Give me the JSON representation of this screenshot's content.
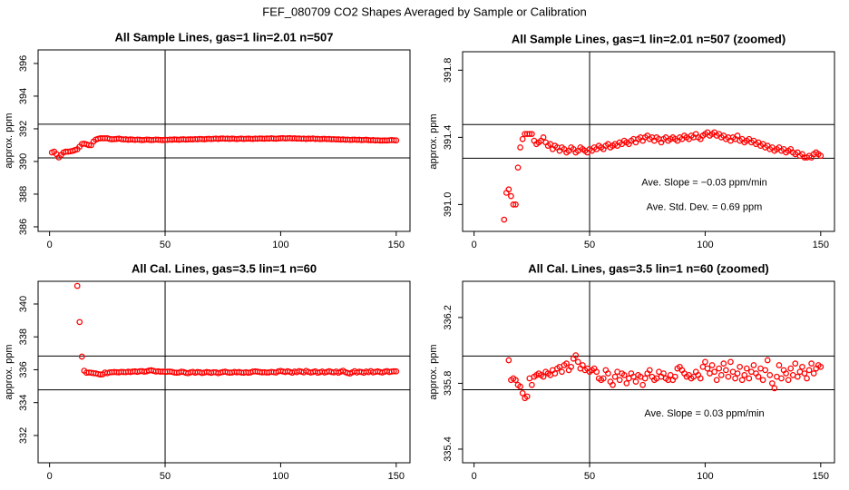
{
  "title": "FEF_080709  CO2 Shapes Averaged by Sample or Calibration",
  "chart_data": [
    {
      "type": "scatter",
      "title": "All Sample Lines, gas=1 lin=2.01 n=507",
      "ylabel": "approx. ppm",
      "color": "#ff0000",
      "xlim": [
        -4.96,
        155.96
      ],
      "ylim": [
        385.72,
        396.83
      ],
      "xticks": [
        0,
        50,
        100,
        150
      ],
      "yticks": [
        386,
        388,
        390,
        392,
        394,
        396
      ],
      "hlines": [
        392.28,
        390.22
      ],
      "vlines": [
        50
      ],
      "x": [
        1,
        2,
        3,
        4,
        5,
        6,
        7,
        8,
        9,
        10,
        11,
        12,
        13,
        14,
        15,
        16,
        17,
        18,
        19,
        20,
        21,
        22,
        23,
        24,
        25,
        26,
        27,
        28,
        29,
        30,
        31,
        32,
        33,
        34,
        35,
        36,
        37,
        38,
        39,
        40,
        41,
        42,
        43,
        44,
        45,
        46,
        47,
        48,
        49,
        50,
        51,
        52,
        53,
        54,
        55,
        56,
        57,
        58,
        59,
        60,
        61,
        62,
        63,
        64,
        65,
        66,
        67,
        68,
        69,
        70,
        71,
        72,
        73,
        74,
        75,
        76,
        77,
        78,
        79,
        80,
        81,
        82,
        83,
        84,
        85,
        86,
        87,
        88,
        89,
        90,
        91,
        92,
        93,
        94,
        95,
        96,
        97,
        98,
        99,
        100,
        101,
        102,
        103,
        104,
        105,
        106,
        107,
        108,
        109,
        110,
        111,
        112,
        113,
        114,
        115,
        116,
        117,
        118,
        119,
        120,
        121,
        122,
        123,
        124,
        125,
        126,
        127,
        128,
        129,
        130,
        131,
        132,
        133,
        134,
        135,
        136,
        137,
        138,
        139,
        140,
        141,
        142,
        143,
        144,
        145,
        146,
        147,
        148,
        149,
        150
      ],
      "values": [
        390.55,
        390.6,
        390.45,
        390.25,
        390.4,
        390.55,
        390.6,
        390.6,
        390.62,
        390.65,
        390.7,
        390.75,
        390.91,
        391.07,
        391.09,
        391.05,
        391.0,
        391.0,
        391.22,
        391.34,
        391.39,
        391.42,
        391.42,
        391.42,
        391.42,
        391.38,
        391.36,
        391.37,
        391.38,
        391.4,
        391.37,
        391.35,
        391.36,
        391.33,
        391.35,
        391.34,
        391.32,
        391.34,
        391.33,
        391.31,
        391.32,
        391.34,
        391.33,
        391.31,
        391.32,
        391.34,
        391.33,
        391.32,
        391.31,
        391.33,
        391.32,
        391.34,
        391.33,
        391.35,
        391.34,
        391.33,
        391.35,
        391.36,
        391.34,
        391.35,
        391.36,
        391.35,
        391.37,
        391.36,
        391.38,
        391.37,
        391.36,
        391.38,
        391.39,
        391.37,
        391.39,
        391.4,
        391.38,
        391.4,
        391.41,
        391.39,
        391.4,
        391.38,
        391.4,
        391.39,
        391.37,
        391.39,
        391.4,
        391.38,
        391.39,
        391.4,
        391.39,
        391.38,
        391.4,
        391.39,
        391.41,
        391.4,
        391.39,
        391.41,
        391.4,
        391.42,
        391.4,
        391.39,
        391.41,
        391.42,
        391.43,
        391.41,
        391.42,
        391.43,
        391.41,
        391.42,
        391.4,
        391.41,
        391.39,
        391.4,
        391.38,
        391.4,
        391.39,
        391.41,
        391.38,
        391.39,
        391.37,
        391.38,
        391.39,
        391.37,
        391.38,
        391.36,
        391.37,
        391.35,
        391.36,
        391.34,
        391.35,
        391.33,
        391.34,
        391.32,
        391.33,
        391.34,
        391.32,
        391.33,
        391.31,
        391.32,
        391.33,
        391.31,
        391.3,
        391.31,
        391.29,
        391.3,
        391.28,
        391.28,
        391.29,
        391.28,
        391.3,
        391.31,
        391.3,
        391.29
      ],
      "annotations": []
    },
    {
      "type": "scatter",
      "title": "All Sample Lines, gas=1 lin=2.01 n=507 (zoomed)",
      "ylabel": "approx. ppm",
      "color": "#ff0000",
      "xlim": [
        -4.96,
        155.96
      ],
      "ylim": [
        390.84,
        391.91
      ],
      "xticks": [
        0,
        50,
        100,
        150
      ],
      "yticks": [
        {
          "value": 391,
          "label": "391.0"
        },
        391.4,
        391.8
      ],
      "hlines": [
        391.476,
        391.276
      ],
      "vlines": [
        50
      ],
      "x": [
        13,
        14,
        15,
        16,
        17,
        18,
        19,
        20,
        21,
        22,
        23,
        24,
        25,
        26,
        27,
        28,
        29,
        30,
        31,
        32,
        33,
        34,
        35,
        36,
        37,
        38,
        39,
        40,
        41,
        42,
        43,
        44,
        45,
        46,
        47,
        48,
        49,
        50,
        51,
        52,
        53,
        54,
        55,
        56,
        57,
        58,
        59,
        60,
        61,
        62,
        63,
        64,
        65,
        66,
        67,
        68,
        69,
        70,
        71,
        72,
        73,
        74,
        75,
        76,
        77,
        78,
        79,
        80,
        81,
        82,
        83,
        84,
        85,
        86,
        87,
        88,
        89,
        90,
        91,
        92,
        93,
        94,
        95,
        96,
        97,
        98,
        99,
        100,
        101,
        102,
        103,
        104,
        105,
        106,
        107,
        108,
        109,
        110,
        111,
        112,
        113,
        114,
        115,
        116,
        117,
        118,
        119,
        120,
        121,
        122,
        123,
        124,
        125,
        126,
        127,
        128,
        129,
        130,
        131,
        132,
        133,
        134,
        135,
        136,
        137,
        138,
        139,
        140,
        141,
        142,
        143,
        144,
        145,
        146,
        147,
        148,
        149,
        150
      ],
      "values": [
        390.91,
        391.07,
        391.09,
        391.05,
        391.0,
        391.0,
        391.22,
        391.34,
        391.39,
        391.42,
        391.42,
        391.42,
        391.42,
        391.38,
        391.36,
        391.37,
        391.38,
        391.4,
        391.37,
        391.35,
        391.36,
        391.33,
        391.35,
        391.34,
        391.32,
        391.34,
        391.33,
        391.31,
        391.32,
        391.34,
        391.33,
        391.31,
        391.32,
        391.34,
        391.33,
        391.32,
        391.31,
        391.33,
        391.32,
        391.34,
        391.33,
        391.35,
        391.34,
        391.33,
        391.35,
        391.36,
        391.34,
        391.35,
        391.36,
        391.35,
        391.37,
        391.36,
        391.38,
        391.37,
        391.36,
        391.38,
        391.39,
        391.37,
        391.39,
        391.4,
        391.38,
        391.4,
        391.41,
        391.39,
        391.4,
        391.38,
        391.4,
        391.39,
        391.37,
        391.39,
        391.4,
        391.38,
        391.39,
        391.4,
        391.39,
        391.38,
        391.4,
        391.39,
        391.41,
        391.4,
        391.39,
        391.41,
        391.4,
        391.42,
        391.4,
        391.39,
        391.41,
        391.42,
        391.43,
        391.41,
        391.42,
        391.43,
        391.41,
        391.42,
        391.4,
        391.41,
        391.39,
        391.4,
        391.38,
        391.4,
        391.39,
        391.41,
        391.38,
        391.39,
        391.37,
        391.38,
        391.39,
        391.37,
        391.38,
        391.36,
        391.37,
        391.35,
        391.36,
        391.34,
        391.35,
        391.33,
        391.34,
        391.32,
        391.33,
        391.34,
        391.32,
        391.33,
        391.31,
        391.32,
        391.33,
        391.31,
        391.3,
        391.31,
        391.29,
        391.3,
        391.28,
        391.28,
        391.29,
        391.28,
        391.3,
        391.31,
        391.3,
        391.29
      ],
      "annotations": [
        "Ave. Slope = −0.03  ppm/min",
        "Ave. Std. Dev. = 0.69  ppm"
      ]
    },
    {
      "type": "scatter",
      "title": "All Cal. Lines, gas=3.5 lin=1 n=60",
      "ylabel": "approx. ppm",
      "color": "#ff0000",
      "xlim": [
        -4.96,
        155.96
      ],
      "ylim": [
        330.34,
        341.38
      ],
      "xticks": [
        0,
        50,
        100,
        150
      ],
      "yticks": [
        332,
        334,
        336,
        338,
        340
      ],
      "hlines": [
        336.83,
        334.78
      ],
      "vlines": [
        50
      ],
      "x": [
        12,
        13,
        14,
        15,
        16,
        17,
        18,
        19,
        20,
        21,
        22,
        23,
        24,
        25,
        26,
        27,
        28,
        29,
        30,
        31,
        32,
        33,
        34,
        35,
        36,
        37,
        38,
        39,
        40,
        41,
        42,
        43,
        44,
        45,
        46,
        47,
        48,
        49,
        50,
        51,
        52,
        53,
        54,
        55,
        56,
        57,
        58,
        59,
        60,
        61,
        62,
        63,
        64,
        65,
        66,
        67,
        68,
        69,
        70,
        71,
        72,
        73,
        74,
        75,
        76,
        77,
        78,
        79,
        80,
        81,
        82,
        83,
        84,
        85,
        86,
        87,
        88,
        89,
        90,
        91,
        92,
        93,
        94,
        95,
        96,
        97,
        98,
        99,
        100,
        101,
        102,
        103,
        104,
        105,
        106,
        107,
        108,
        109,
        110,
        111,
        112,
        113,
        114,
        115,
        116,
        117,
        118,
        119,
        120,
        121,
        122,
        123,
        124,
        125,
        126,
        127,
        128,
        129,
        130,
        131,
        132,
        133,
        134,
        135,
        136,
        137,
        138,
        139,
        140,
        141,
        142,
        143,
        144,
        145,
        146,
        147,
        148,
        149,
        150
      ],
      "values": [
        341.1,
        338.9,
        336.8,
        335.94,
        335.82,
        335.83,
        335.82,
        335.79,
        335.78,
        335.74,
        335.71,
        335.72,
        335.83,
        335.79,
        335.84,
        335.85,
        335.86,
        335.85,
        335.84,
        335.87,
        335.86,
        335.85,
        335.88,
        335.86,
        335.89,
        335.9,
        335.87,
        335.91,
        335.92,
        335.88,
        335.9,
        335.95,
        335.97,
        335.93,
        335.89,
        335.91,
        335.88,
        335.89,
        335.87,
        335.88,
        335.89,
        335.87,
        335.83,
        335.82,
        335.83,
        335.88,
        335.86,
        335.81,
        335.79,
        335.84,
        335.87,
        335.82,
        335.86,
        335.85,
        335.8,
        335.83,
        335.86,
        335.84,
        335.81,
        335.85,
        335.84,
        335.79,
        335.83,
        335.86,
        335.88,
        335.84,
        335.82,
        335.83,
        335.87,
        335.84,
        335.86,
        335.83,
        335.82,
        335.85,
        335.82,
        335.84,
        335.89,
        335.9,
        335.88,
        335.86,
        335.84,
        335.85,
        335.83,
        335.84,
        335.87,
        335.85,
        335.83,
        335.9,
        335.93,
        335.89,
        335.86,
        335.91,
        335.87,
        335.82,
        335.89,
        335.85,
        335.92,
        335.88,
        335.84,
        335.93,
        335.87,
        335.83,
        335.86,
        335.9,
        335.82,
        335.85,
        335.89,
        335.83,
        335.87,
        335.91,
        335.86,
        335.84,
        335.89,
        335.82,
        335.88,
        335.94,
        335.85,
        335.8,
        335.77,
        335.84,
        335.91,
        335.83,
        335.88,
        335.86,
        335.82,
        335.89,
        335.85,
        335.92,
        335.84,
        335.87,
        335.9,
        335.86,
        335.83,
        335.88,
        335.92,
        335.86,
        335.89,
        335.91,
        335.9
      ],
      "annotations": []
    },
    {
      "type": "scatter",
      "title": "All Cal. Lines, gas=3.5 lin=1 n=60 (zoomed)",
      "ylabel": "approx. ppm",
      "color": "#ff0000",
      "xlim": [
        -4.96,
        155.96
      ],
      "ylim": [
        335.317,
        336.42
      ],
      "xticks": [
        0,
        50,
        100,
        150
      ],
      "yticks": [
        335.4,
        335.8,
        336.2
      ],
      "hlines": [
        335.966,
        335.761
      ],
      "vlines": [
        50
      ],
      "x": [
        15,
        16,
        17,
        18,
        19,
        20,
        21,
        22,
        23,
        24,
        25,
        26,
        27,
        28,
        29,
        30,
        31,
        32,
        33,
        34,
        35,
        36,
        37,
        38,
        39,
        40,
        41,
        42,
        43,
        44,
        45,
        46,
        47,
        48,
        49,
        50,
        51,
        52,
        53,
        54,
        55,
        56,
        57,
        58,
        59,
        60,
        61,
        62,
        63,
        64,
        65,
        66,
        67,
        68,
        69,
        70,
        71,
        72,
        73,
        74,
        75,
        76,
        77,
        78,
        79,
        80,
        81,
        82,
        83,
        84,
        85,
        86,
        87,
        88,
        89,
        90,
        91,
        92,
        93,
        94,
        95,
        96,
        97,
        98,
        99,
        100,
        101,
        102,
        103,
        104,
        105,
        106,
        107,
        108,
        109,
        110,
        111,
        112,
        113,
        114,
        115,
        116,
        117,
        118,
        119,
        120,
        121,
        122,
        123,
        124,
        125,
        126,
        127,
        128,
        129,
        130,
        131,
        132,
        133,
        134,
        135,
        136,
        137,
        138,
        139,
        140,
        141,
        142,
        143,
        144,
        145,
        146,
        147,
        148,
        149,
        150
      ],
      "values": [
        335.94,
        335.82,
        335.83,
        335.82,
        335.79,
        335.78,
        335.74,
        335.71,
        335.72,
        335.83,
        335.79,
        335.84,
        335.85,
        335.86,
        335.85,
        335.84,
        335.87,
        335.86,
        335.85,
        335.88,
        335.86,
        335.89,
        335.9,
        335.87,
        335.91,
        335.92,
        335.88,
        335.9,
        335.95,
        335.97,
        335.93,
        335.89,
        335.91,
        335.88,
        335.89,
        335.87,
        335.88,
        335.89,
        335.87,
        335.83,
        335.82,
        335.83,
        335.88,
        335.86,
        335.81,
        335.79,
        335.84,
        335.87,
        335.82,
        335.86,
        335.85,
        335.8,
        335.83,
        335.86,
        335.84,
        335.81,
        335.85,
        335.84,
        335.79,
        335.83,
        335.86,
        335.88,
        335.84,
        335.82,
        335.83,
        335.87,
        335.84,
        335.86,
        335.83,
        335.82,
        335.85,
        335.82,
        335.84,
        335.89,
        335.9,
        335.88,
        335.86,
        335.84,
        335.85,
        335.83,
        335.84,
        335.87,
        335.85,
        335.83,
        335.9,
        335.93,
        335.89,
        335.86,
        335.91,
        335.87,
        335.82,
        335.89,
        335.85,
        335.92,
        335.88,
        335.84,
        335.93,
        335.87,
        335.83,
        335.86,
        335.9,
        335.82,
        335.85,
        335.89,
        335.83,
        335.87,
        335.91,
        335.86,
        335.84,
        335.89,
        335.82,
        335.88,
        335.94,
        335.85,
        335.8,
        335.77,
        335.84,
        335.91,
        335.83,
        335.88,
        335.86,
        335.82,
        335.89,
        335.85,
        335.92,
        335.84,
        335.87,
        335.9,
        335.86,
        335.83,
        335.88,
        335.92,
        335.86,
        335.89,
        335.91,
        335.9
      ],
      "annotations": [
        "Ave. Slope =  0.03  ppm/min"
      ]
    }
  ]
}
